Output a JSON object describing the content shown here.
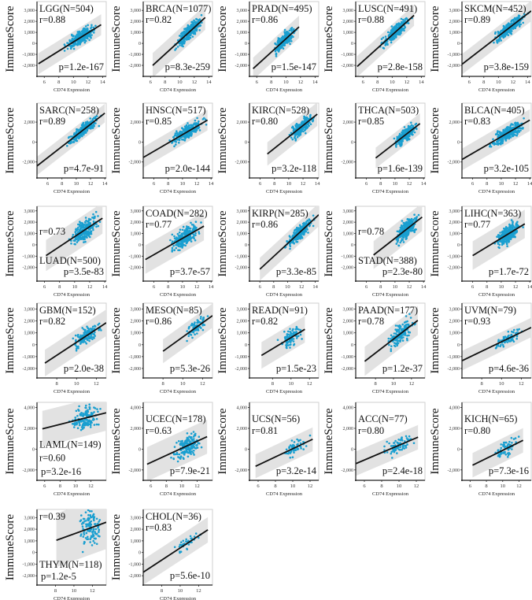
{
  "chart_data": {
    "type": "scatter",
    "xlabel": "CD74 Expression",
    "ylabel": "ImmuneScore",
    "point_color": "#1a9fd0",
    "line_color": "#111111",
    "band_color": "#e2e2e2",
    "panels": [
      {
        "title": "LGG(N=504)",
        "n": 504,
        "r": "r=0.88",
        "p": "p=1.2e-167",
        "label_pos": "top",
        "xlim": [
          5,
          14.5
        ],
        "xticks": [
          6,
          8,
          10,
          12,
          14
        ],
        "ylim": [
          -3000,
          3800
        ],
        "yticks": [
          -2000,
          -1000,
          0,
          1000,
          2000,
          3000
        ],
        "line": [
          [
            5.2,
            -1850
          ],
          [
            13.8,
            1700
          ]
        ]
      },
      {
        "title": "BRCA(N=1077)",
        "n": 1077,
        "r": "r=0.82",
        "p": "p=8.3e-259",
        "label_pos": "top",
        "xlim": [
          5,
          14.5
        ],
        "xticks": [
          6,
          8,
          10,
          12,
          14
        ],
        "ylim": [
          -3000,
          3800
        ],
        "yticks": [
          -2000,
          -1000,
          0,
          1000,
          2000,
          3000
        ],
        "line": [
          [
            6.3,
            -2000
          ],
          [
            13.5,
            2350
          ]
        ]
      },
      {
        "title": "PRAD(N=495)",
        "n": 495,
        "r": "r=0.86",
        "p": "p=1.5e-147",
        "label_pos": "top",
        "xlim": [
          5,
          14.5
        ],
        "xticks": [
          6,
          8,
          10,
          12,
          14
        ],
        "ylim": [
          -3000,
          3800
        ],
        "yticks": [
          -2000,
          -1000,
          0,
          1000,
          2000,
          3000
        ],
        "line": [
          [
            5.5,
            -2300
          ],
          [
            11.8,
            1500
          ]
        ]
      },
      {
        "title": "LUSC(N=491)",
        "n": 491,
        "r": "r=0.88",
        "p": "p=2.8e-158",
        "label_pos": "top",
        "xlim": [
          5,
          14.5
        ],
        "xticks": [
          6,
          8,
          10,
          12,
          14
        ],
        "ylim": [
          -3000,
          3800
        ],
        "yticks": [
          -2000,
          -1000,
          0,
          1000,
          2000,
          3000
        ],
        "line": [
          [
            5.2,
            -2100
          ],
          [
            13,
            2550
          ]
        ]
      },
      {
        "title": "SKCM(N=452)",
        "n": 452,
        "r": "r=0.89",
        "p": "p=3.8e-159",
        "label_pos": "top",
        "xlim": [
          5,
          14.5
        ],
        "xticks": [
          6,
          8,
          10,
          12,
          14
        ],
        "ylim": [
          -3000,
          3800
        ],
        "yticks": [
          -2000,
          -1000,
          0,
          1000,
          2000,
          3000
        ],
        "line": [
          [
            5,
            -1900
          ],
          [
            14.5,
            2950
          ]
        ]
      },
      {
        "title": "SARC(N=258)",
        "n": 258,
        "r": "r=0.89",
        "p": "p=4.7e-91",
        "label_pos": "top",
        "xlim": [
          4.5,
          14.2
        ],
        "xticks": [
          6,
          8,
          10,
          12,
          14
        ],
        "ylim": [
          -3600,
          3900
        ],
        "yticks": [
          -2000,
          0,
          2000
        ],
        "line": [
          [
            4.5,
            -2400
          ],
          [
            14,
            2900
          ]
        ]
      },
      {
        "title": "HNSC(N=517)",
        "n": 517,
        "r": "r=0.85",
        "p": "p=2.0e-144",
        "label_pos": "top",
        "xlim": [
          4.5,
          14.2
        ],
        "xticks": [
          6,
          8,
          10,
          12,
          14
        ],
        "ylim": [
          -3600,
          3900
        ],
        "yticks": [
          -2000,
          0,
          2000
        ],
        "line": [
          [
            4.5,
            -1550
          ],
          [
            13.5,
            2200
          ]
        ]
      },
      {
        "title": "KIRC(N=528)",
        "n": 528,
        "r": "r=0.80",
        "p": "p=3.2e-118",
        "label_pos": "top",
        "xlim": [
          4.5,
          14.2
        ],
        "xticks": [
          6,
          8,
          10,
          12,
          14
        ],
        "ylim": [
          -3600,
          3900
        ],
        "yticks": [
          -2000,
          0,
          2000
        ],
        "line": [
          [
            7,
            -1200
          ],
          [
            14,
            2800
          ]
        ]
      },
      {
        "title": "THCA(N=503)",
        "n": 503,
        "r": "r=0.85",
        "p": "p=1.6e-139",
        "label_pos": "top",
        "xlim": [
          4.5,
          14.2
        ],
        "xticks": [
          6,
          8,
          10,
          12,
          14
        ],
        "ylim": [
          -3600,
          3900
        ],
        "yticks": [
          -2000,
          0,
          2000
        ],
        "line": [
          [
            7.3,
            -1600
          ],
          [
            13.5,
            1850
          ]
        ]
      },
      {
        "title": "BLCA(N=405)",
        "n": 405,
        "r": "r=0.83",
        "p": "p=3.2e-105",
        "label_pos": "top",
        "xlim": [
          4.5,
          14.2
        ],
        "xticks": [
          6,
          8,
          10,
          12,
          14
        ],
        "ylim": [
          -3600,
          3900
        ],
        "yticks": [
          -2000,
          0,
          2000
        ],
        "line": [
          [
            4.5,
            -1750
          ],
          [
            14,
            2200
          ]
        ]
      },
      {
        "title": "LUAD(N=500)",
        "n": 500,
        "r": "r=0.73",
        "p": "p=3.5e-83",
        "label_pos": "bottom",
        "xlim": [
          5,
          14.2
        ],
        "xticks": [
          6,
          8,
          10,
          12,
          14
        ],
        "ylim": [
          -3200,
          3400
        ],
        "yticks": [
          -2000,
          -1000,
          0,
          1000,
          2000,
          3000
        ],
        "line": [
          [
            6.2,
            -950
          ],
          [
            13.7,
            2350
          ]
        ]
      },
      {
        "title": "COAD(N=282)",
        "n": 282,
        "r": "r=0.77",
        "p": "p=3.7e-57",
        "label_pos": "top",
        "xlim": [
          4.5,
          14.2
        ],
        "xticks": [
          6,
          8,
          10,
          12,
          14
        ],
        "ylim": [
          -3200,
          3400
        ],
        "yticks": [
          -2000,
          -1000,
          0,
          1000,
          2000,
          3000
        ],
        "line": [
          [
            4.8,
            -1300
          ],
          [
            13,
            1650
          ]
        ]
      },
      {
        "title": "KIRP(N=285)",
        "n": 285,
        "r": "r=0.86",
        "p": "p=3.3e-85",
        "label_pos": "top",
        "xlim": [
          4.5,
          14.5
        ],
        "xticks": [
          6,
          8,
          10,
          12,
          14
        ],
        "ylim": [
          -3200,
          3400
        ],
        "yticks": [
          -2000,
          -1000,
          0,
          1000,
          2000,
          3000
        ],
        "line": [
          [
            6,
            -2150
          ],
          [
            14.5,
            2650
          ]
        ]
      },
      {
        "title": "STAD(N=388)",
        "n": 388,
        "r": "r=0.78",
        "p": "p=2.3e-80",
        "label_pos": "bottom",
        "xlim": [
          4.5,
          14.2
        ],
        "xticks": [
          6,
          8,
          10,
          12,
          14
        ],
        "ylim": [
          -3200,
          3400
        ],
        "yticks": [
          -2000,
          -1000,
          0,
          1000,
          2000,
          3000
        ],
        "line": [
          [
            7,
            -900
          ],
          [
            13.8,
            2450
          ]
        ]
      },
      {
        "title": "LIHC(N=363)",
        "n": 363,
        "r": "r=0.77",
        "p": "p=1.7e-72",
        "label_pos": "top",
        "xlim": [
          4.5,
          14.2
        ],
        "xticks": [
          6,
          8,
          10,
          12,
          14
        ],
        "ylim": [
          -3200,
          3400
        ],
        "yticks": [
          -2000,
          -1000,
          0,
          1000,
          2000,
          3000
        ],
        "line": [
          [
            6,
            -950
          ],
          [
            13.3,
            1850
          ]
        ]
      },
      {
        "title": "GBM(N=152)",
        "n": 152,
        "r": "r=0.82",
        "p": "p=2.0e-38",
        "label_pos": "top",
        "xlim": [
          6,
          13
        ],
        "xticks": [
          8,
          10,
          12
        ],
        "ylim": [
          -2800,
          3500
        ],
        "yticks": [
          -2000,
          -1000,
          0,
          1000,
          2000,
          3000
        ],
        "line": [
          [
            6.8,
            -1550
          ],
          [
            13,
            1850
          ]
        ]
      },
      {
        "title": "MESO(N=85)",
        "n": 85,
        "r": "r=0.86",
        "p": "p=5.3e-26",
        "label_pos": "top",
        "xlim": [
          6,
          13
        ],
        "xticks": [
          8,
          10,
          12
        ],
        "ylim": [
          -2800,
          3500
        ],
        "yticks": [
          -2000,
          -1000,
          0,
          1000,
          2000,
          3000
        ],
        "line": [
          [
            8,
            -550
          ],
          [
            13,
            2450
          ]
        ]
      },
      {
        "title": "READ(N=91)",
        "n": 91,
        "r": "r=0.82",
        "p": "p=1.5e-23",
        "label_pos": "top",
        "xlim": [
          5.5,
          13
        ],
        "xticks": [
          8,
          10,
          12
        ],
        "ylim": [
          -2800,
          3500
        ],
        "yticks": [
          -2000,
          -1000,
          0,
          1000,
          2000,
          3000
        ],
        "line": [
          [
            6.8,
            -900
          ],
          [
            11.5,
            1300
          ]
        ]
      },
      {
        "title": "PAAD(N=177)",
        "n": 177,
        "r": "r=0.78",
        "p": "p=1.2e-37",
        "label_pos": "top",
        "xlim": [
          5.8,
          13.5
        ],
        "xticks": [
          8,
          10,
          12
        ],
        "ylim": [
          -2800,
          3500
        ],
        "yticks": [
          -2000,
          -1000,
          0,
          1000,
          2000,
          3000
        ],
        "line": [
          [
            6.8,
            -1400
          ],
          [
            12.7,
            2050
          ]
        ]
      },
      {
        "title": "UVM(N=79)",
        "n": 79,
        "r": "r=0.93",
        "p": "p=4.6e-36",
        "label_pos": "top",
        "xlim": [
          6,
          13
        ],
        "xticks": [
          8,
          10,
          12
        ],
        "ylim": [
          -2800,
          3500
        ],
        "yticks": [
          -2000,
          -1000,
          0,
          1000,
          2000,
          3000
        ],
        "line": [
          [
            6,
            -1350
          ],
          [
            13,
            1450
          ]
        ]
      },
      {
        "title": "LAML(N=149)",
        "n": 149,
        "r": "r=0.60",
        "p": "p=3.2e-16",
        "label_pos": "middle",
        "xlim": [
          5,
          14
        ],
        "xticks": [
          6,
          8,
          10,
          12
        ],
        "ylim": [
          -3000,
          4500
        ],
        "yticks": [
          -2000,
          0,
          2000,
          4000
        ],
        "line": [
          [
            5.7,
            1950
          ],
          [
            14,
            3500
          ]
        ]
      },
      {
        "title": "UCEC(N=178)",
        "n": 178,
        "r": "r=0.63",
        "p": "p=7.9e-21",
        "label_pos": "top2",
        "xlim": [
          5,
          14
        ],
        "xticks": [
          6,
          8,
          10,
          12
        ],
        "ylim": [
          -3000,
          4500
        ],
        "yticks": [
          -2000,
          0,
          2000,
          4000
        ],
        "line": [
          [
            5.5,
            -1450
          ],
          [
            13.3,
            1200
          ]
        ]
      },
      {
        "title": "UCS(N=56)",
        "n": 56,
        "r": "r=0.81",
        "p": "p=3.2e-14",
        "label_pos": "top2",
        "xlim": [
          5,
          13
        ],
        "xticks": [
          6,
          8,
          10,
          12
        ],
        "ylim": [
          -3000,
          4500
        ],
        "yticks": [
          -2000,
          0,
          2000,
          4000
        ],
        "line": [
          [
            5.7,
            -1650
          ],
          [
            12.3,
            950
          ]
        ]
      },
      {
        "title": "ACC(N=77)",
        "n": 77,
        "r": "r=0.80",
        "p": "p=2.4e-18",
        "label_pos": "top2",
        "xlim": [
          5,
          13
        ],
        "xticks": [
          6,
          8,
          10,
          12
        ],
        "ylim": [
          -3000,
          4500
        ],
        "yticks": [
          -2000,
          0,
          2000,
          4000
        ],
        "line": [
          [
            5,
            -1400
          ],
          [
            12.2,
            1150
          ]
        ]
      },
      {
        "title": "KICH(N=65)",
        "n": 65,
        "r": "r=0.80",
        "p": "p=7.3e-16",
        "label_pos": "top2",
        "xlim": [
          5,
          13.5
        ],
        "xticks": [
          6,
          8,
          10,
          12
        ],
        "ylim": [
          -3000,
          4500
        ],
        "yticks": [
          -2000,
          0,
          2000,
          4000
        ],
        "line": [
          [
            6.3,
            -1550
          ],
          [
            12.5,
            850
          ]
        ]
      },
      {
        "title": "THYM(N=118)",
        "n": 118,
        "r": "r=0.39",
        "p": "p=1.2e-5",
        "label_pos": "bottom-left",
        "xlim": [
          6,
          13.5
        ],
        "xticks": [
          8,
          10,
          12
        ],
        "ylim": [
          -2800,
          3700
        ],
        "yticks": [
          -2000,
          -1000,
          0,
          1000,
          2000,
          3000
        ],
        "line": [
          [
            8.1,
            1050
          ],
          [
            13.5,
            2600
          ]
        ]
      },
      {
        "title": "CHOL(N=36)",
        "n": 36,
        "r": "r=0.83",
        "p": "p=5.6e-10",
        "label_pos": "top",
        "xlim": [
          6,
          13.5
        ],
        "xticks": [
          8,
          10,
          12
        ],
        "ylim": [
          -2800,
          3700
        ],
        "yticks": [
          -2000,
          -1000,
          0,
          1000,
          2000,
          3000
        ],
        "line": [
          [
            6,
            -1700
          ],
          [
            13,
            1950
          ]
        ]
      }
    ]
  }
}
